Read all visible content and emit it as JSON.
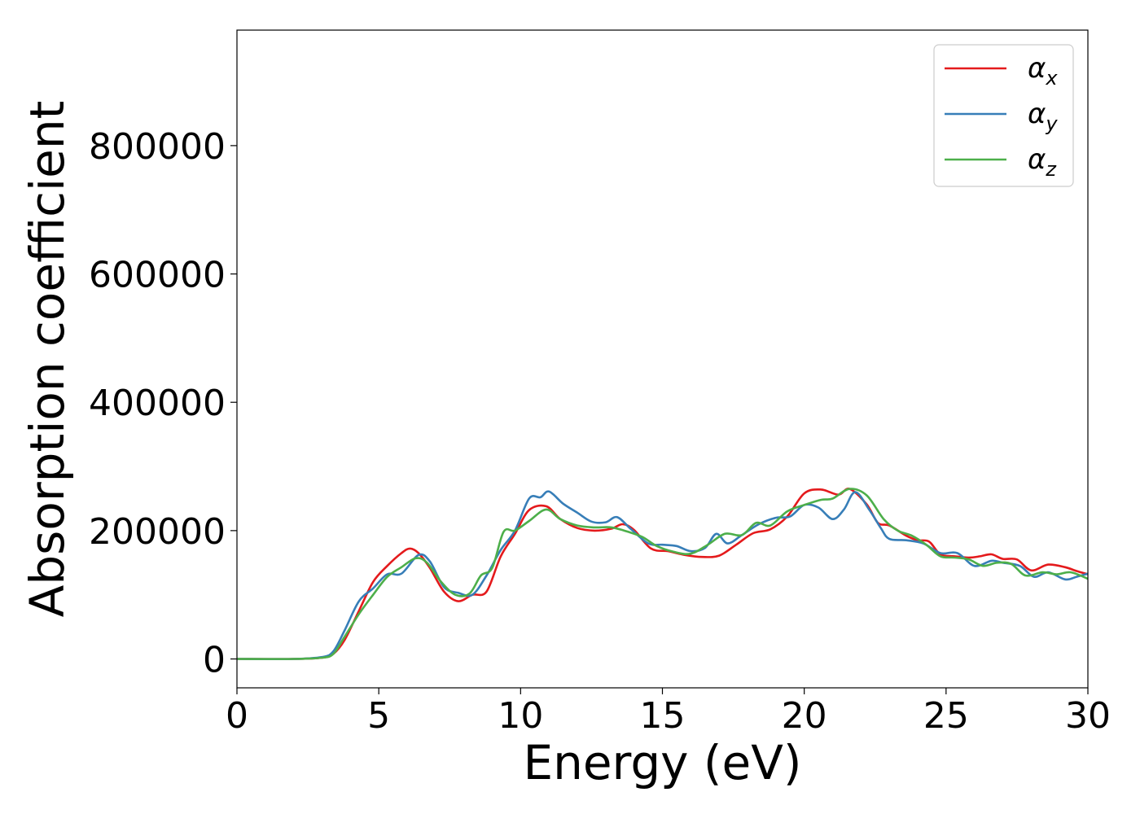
{
  "chart_data": {
    "type": "line",
    "title": "",
    "xlabel": "Energy (eV)",
    "ylabel": "Absorption coefficient",
    "xlim": [
      0,
      30
    ],
    "ylim": [
      -45000,
      980000
    ],
    "xticks": [
      0,
      5,
      10,
      15,
      20,
      25,
      30
    ],
    "yticks": [
      0,
      200000,
      400000,
      600000,
      800000
    ],
    "grid": false,
    "legend_position": "top-right",
    "series": [
      {
        "name": "αx",
        "base": "α",
        "sub": "x",
        "color": "#e41a1c",
        "points": [
          [
            0,
            0
          ],
          [
            2,
            0
          ],
          [
            3,
            2000
          ],
          [
            3.4,
            8000
          ],
          [
            3.8,
            30000
          ],
          [
            4.3,
            75000
          ],
          [
            4.8,
            120000
          ],
          [
            5.3,
            145000
          ],
          [
            5.8,
            165000
          ],
          [
            6.1,
            172000
          ],
          [
            6.4,
            165000
          ],
          [
            6.8,
            142000
          ],
          [
            7.3,
            105000
          ],
          [
            7.8,
            90000
          ],
          [
            8.3,
            100000
          ],
          [
            8.8,
            105000
          ],
          [
            9.3,
            160000
          ],
          [
            9.8,
            195000
          ],
          [
            10.3,
            232000
          ],
          [
            10.9,
            238000
          ],
          [
            11.4,
            218000
          ],
          [
            12,
            204000
          ],
          [
            12.6,
            200000
          ],
          [
            13.2,
            203000
          ],
          [
            13.6,
            210000
          ],
          [
            14,
            201000
          ],
          [
            14.6,
            172000
          ],
          [
            15.2,
            168000
          ],
          [
            15.8,
            162000
          ],
          [
            16.4,
            159000
          ],
          [
            17,
            161000
          ],
          [
            17.6,
            178000
          ],
          [
            18.2,
            196000
          ],
          [
            18.8,
            202000
          ],
          [
            19.4,
            222000
          ],
          [
            20,
            258000
          ],
          [
            20.6,
            264000
          ],
          [
            21.2,
            256000
          ],
          [
            21.6,
            265000
          ],
          [
            22.2,
            241000
          ],
          [
            22.6,
            212000
          ],
          [
            23,
            208000
          ],
          [
            23.6,
            192000
          ],
          [
            24,
            185000
          ],
          [
            24.4,
            183000
          ],
          [
            24.8,
            163000
          ],
          [
            25.3,
            160000
          ],
          [
            25.8,
            158000
          ],
          [
            26.2,
            160000
          ],
          [
            26.6,
            163000
          ],
          [
            27,
            156000
          ],
          [
            27.5,
            155000
          ],
          [
            28,
            138000
          ],
          [
            28.6,
            147000
          ],
          [
            29.2,
            143000
          ],
          [
            29.6,
            137000
          ],
          [
            30,
            132000
          ]
        ]
      },
      {
        "name": "αy",
        "base": "α",
        "sub": "y",
        "color": "#377eb8",
        "points": [
          [
            0,
            0
          ],
          [
            2,
            0
          ],
          [
            3,
            3000
          ],
          [
            3.4,
            12000
          ],
          [
            3.8,
            45000
          ],
          [
            4.3,
            90000
          ],
          [
            4.8,
            110000
          ],
          [
            5.3,
            132000
          ],
          [
            5.8,
            133000
          ],
          [
            6.4,
            162000
          ],
          [
            6.8,
            152000
          ],
          [
            7.3,
            112000
          ],
          [
            7.8,
            103000
          ],
          [
            8.3,
            100000
          ],
          [
            8.8,
            130000
          ],
          [
            9.3,
            170000
          ],
          [
            9.8,
            200000
          ],
          [
            10.3,
            250000
          ],
          [
            10.7,
            252000
          ],
          [
            11,
            261000
          ],
          [
            11.5,
            242000
          ],
          [
            12,
            228000
          ],
          [
            12.5,
            214000
          ],
          [
            13,
            213000
          ],
          [
            13.4,
            221000
          ],
          [
            13.9,
            202000
          ],
          [
            14.5,
            180000
          ],
          [
            15,
            178000
          ],
          [
            15.5,
            176000
          ],
          [
            16,
            168000
          ],
          [
            16.5,
            173000
          ],
          [
            16.9,
            195000
          ],
          [
            17.3,
            180000
          ],
          [
            17.8,
            193000
          ],
          [
            18.4,
            210000
          ],
          [
            19,
            220000
          ],
          [
            19.5,
            222000
          ],
          [
            20,
            240000
          ],
          [
            20.5,
            236000
          ],
          [
            21,
            218000
          ],
          [
            21.4,
            233000
          ],
          [
            21.8,
            260000
          ],
          [
            22.3,
            232000
          ],
          [
            22.7,
            204000
          ],
          [
            23,
            187000
          ],
          [
            23.6,
            185000
          ],
          [
            24.2,
            180000
          ],
          [
            24.8,
            165000
          ],
          [
            25.4,
            165000
          ],
          [
            26,
            145000
          ],
          [
            26.6,
            153000
          ],
          [
            27,
            150000
          ],
          [
            27.6,
            145000
          ],
          [
            28.1,
            128000
          ],
          [
            28.6,
            135000
          ],
          [
            29.2,
            124000
          ],
          [
            29.6,
            128000
          ],
          [
            30,
            133000
          ]
        ]
      },
      {
        "name": "αz",
        "base": "α",
        "sub": "z",
        "color": "#4daf4a",
        "points": [
          [
            0,
            0
          ],
          [
            2,
            0
          ],
          [
            3,
            2000
          ],
          [
            3.4,
            8000
          ],
          [
            3.8,
            35000
          ],
          [
            4.3,
            70000
          ],
          [
            4.8,
            100000
          ],
          [
            5.3,
            128000
          ],
          [
            5.8,
            143000
          ],
          [
            6.3,
            157000
          ],
          [
            6.7,
            150000
          ],
          [
            7.2,
            120000
          ],
          [
            7.7,
            100000
          ],
          [
            8.2,
            102000
          ],
          [
            8.6,
            130000
          ],
          [
            9,
            142000
          ],
          [
            9.4,
            198000
          ],
          [
            9.8,
            200000
          ],
          [
            10.3,
            215000
          ],
          [
            10.9,
            233000
          ],
          [
            11.4,
            218000
          ],
          [
            12,
            208000
          ],
          [
            12.6,
            205000
          ],
          [
            13.2,
            205000
          ],
          [
            13.8,
            198000
          ],
          [
            14.3,
            190000
          ],
          [
            14.8,
            176000
          ],
          [
            15.4,
            167000
          ],
          [
            16,
            164000
          ],
          [
            16.6,
            178000
          ],
          [
            17.2,
            195000
          ],
          [
            17.8,
            193000
          ],
          [
            18.3,
            212000
          ],
          [
            18.8,
            208000
          ],
          [
            19.4,
            230000
          ],
          [
            20,
            240000
          ],
          [
            20.6,
            248000
          ],
          [
            21,
            250000
          ],
          [
            21.6,
            265000
          ],
          [
            22.2,
            255000
          ],
          [
            22.8,
            218000
          ],
          [
            23.3,
            200000
          ],
          [
            23.8,
            192000
          ],
          [
            24.3,
            178000
          ],
          [
            24.8,
            160000
          ],
          [
            25.3,
            158000
          ],
          [
            25.8,
            155000
          ],
          [
            26.3,
            145000
          ],
          [
            26.8,
            150000
          ],
          [
            27.3,
            148000
          ],
          [
            27.8,
            130000
          ],
          [
            28.4,
            135000
          ],
          [
            28.9,
            132000
          ],
          [
            29.4,
            135000
          ],
          [
            30,
            125000
          ]
        ]
      }
    ]
  }
}
